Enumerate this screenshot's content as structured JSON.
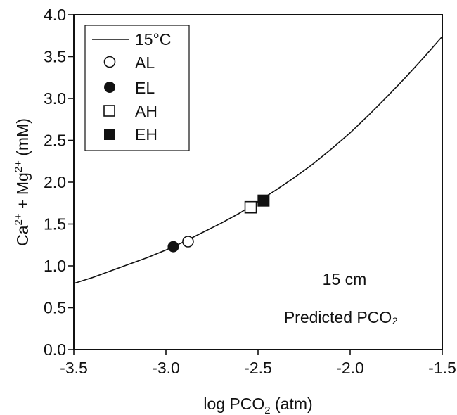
{
  "chart_data": {
    "type": "line",
    "xlabel": "log PCO₂ (atm)",
    "ylabel": "Ca²⁺ + Mg²⁺ (mM)",
    "xlim": [
      -3.5,
      -1.5
    ],
    "ylim": [
      0.0,
      4.0
    ],
    "x_ticks": [
      "-3.5",
      "-3.0",
      "-2.5",
      "-2.0",
      "-1.5"
    ],
    "y_ticks": [
      "0.0",
      "0.5",
      "1.0",
      "1.5",
      "2.0",
      "2.5",
      "3.0",
      "3.5",
      "4.0"
    ],
    "grid": false,
    "legend_position": "top-left",
    "series": [
      {
        "name": "15°C",
        "kind": "line",
        "color": "#111111",
        "x": [
          -3.5,
          -3.4,
          -3.3,
          -3.2,
          -3.1,
          -3.0,
          -2.9,
          -2.8,
          -2.7,
          -2.6,
          -2.5,
          -2.4,
          -2.3,
          -2.2,
          -2.1,
          -2.0,
          -1.9,
          -1.8,
          -1.7,
          -1.6,
          -1.5
        ],
        "y": [
          0.79,
          0.86,
          0.94,
          1.02,
          1.1,
          1.19,
          1.29,
          1.4,
          1.51,
          1.63,
          1.77,
          1.91,
          2.06,
          2.22,
          2.4,
          2.59,
          2.8,
          3.02,
          3.25,
          3.49,
          3.74
        ]
      },
      {
        "name": "AL",
        "kind": "marker",
        "marker": "open-circle",
        "x": [
          -2.88
        ],
        "y": [
          1.29
        ]
      },
      {
        "name": "EL",
        "kind": "marker",
        "marker": "filled-circle",
        "x": [
          -2.96
        ],
        "y": [
          1.23
        ]
      },
      {
        "name": "AH",
        "kind": "marker",
        "marker": "open-square",
        "x": [
          -2.54
        ],
        "y": [
          1.7
        ]
      },
      {
        "name": "EH",
        "kind": "marker",
        "marker": "filled-square",
        "x": [
          -2.47
        ],
        "y": [
          1.78
        ]
      }
    ],
    "annotations": [
      "15 cm",
      "Predicted PCO₂"
    ]
  }
}
